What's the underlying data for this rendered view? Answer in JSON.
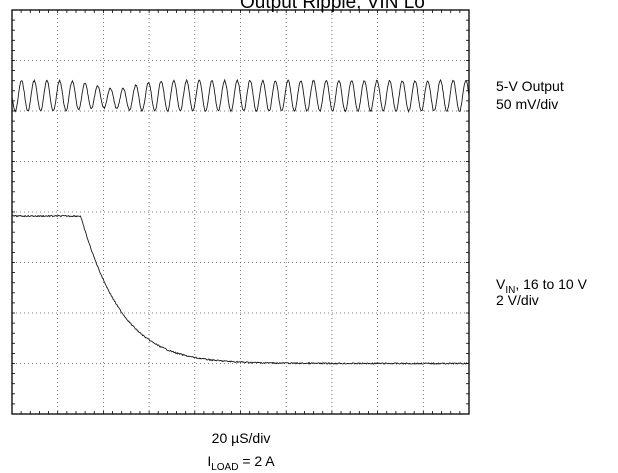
{
  "title_fragment": "Output Ripple, VIN Lo",
  "chart_data": {
    "type": "line",
    "title": "",
    "x_axis": {
      "label": "20 µS/div",
      "divisions": 10,
      "range": [
        0,
        200
      ],
      "units": "µS"
    },
    "y_axis": {
      "divisions": 8
    },
    "grid": true,
    "conditions": {
      "label_main": "I",
      "label_sub": "LOAD",
      "label_value": " = 2 A"
    },
    "series": [
      {
        "name": "5-V Output",
        "scale": "50 mV/div",
        "shape": "ripple",
        "cycles": 36,
        "amplitude_div": 0.3
      },
      {
        "name_main": "V",
        "name_sub": "IN",
        "name_rest": ", 16 to 10 V",
        "scale": "2 V/div",
        "shape": "step-down",
        "from_v": 16,
        "to_v": 10,
        "step_start_us": 30,
        "settle_us": 55
      }
    ]
  }
}
